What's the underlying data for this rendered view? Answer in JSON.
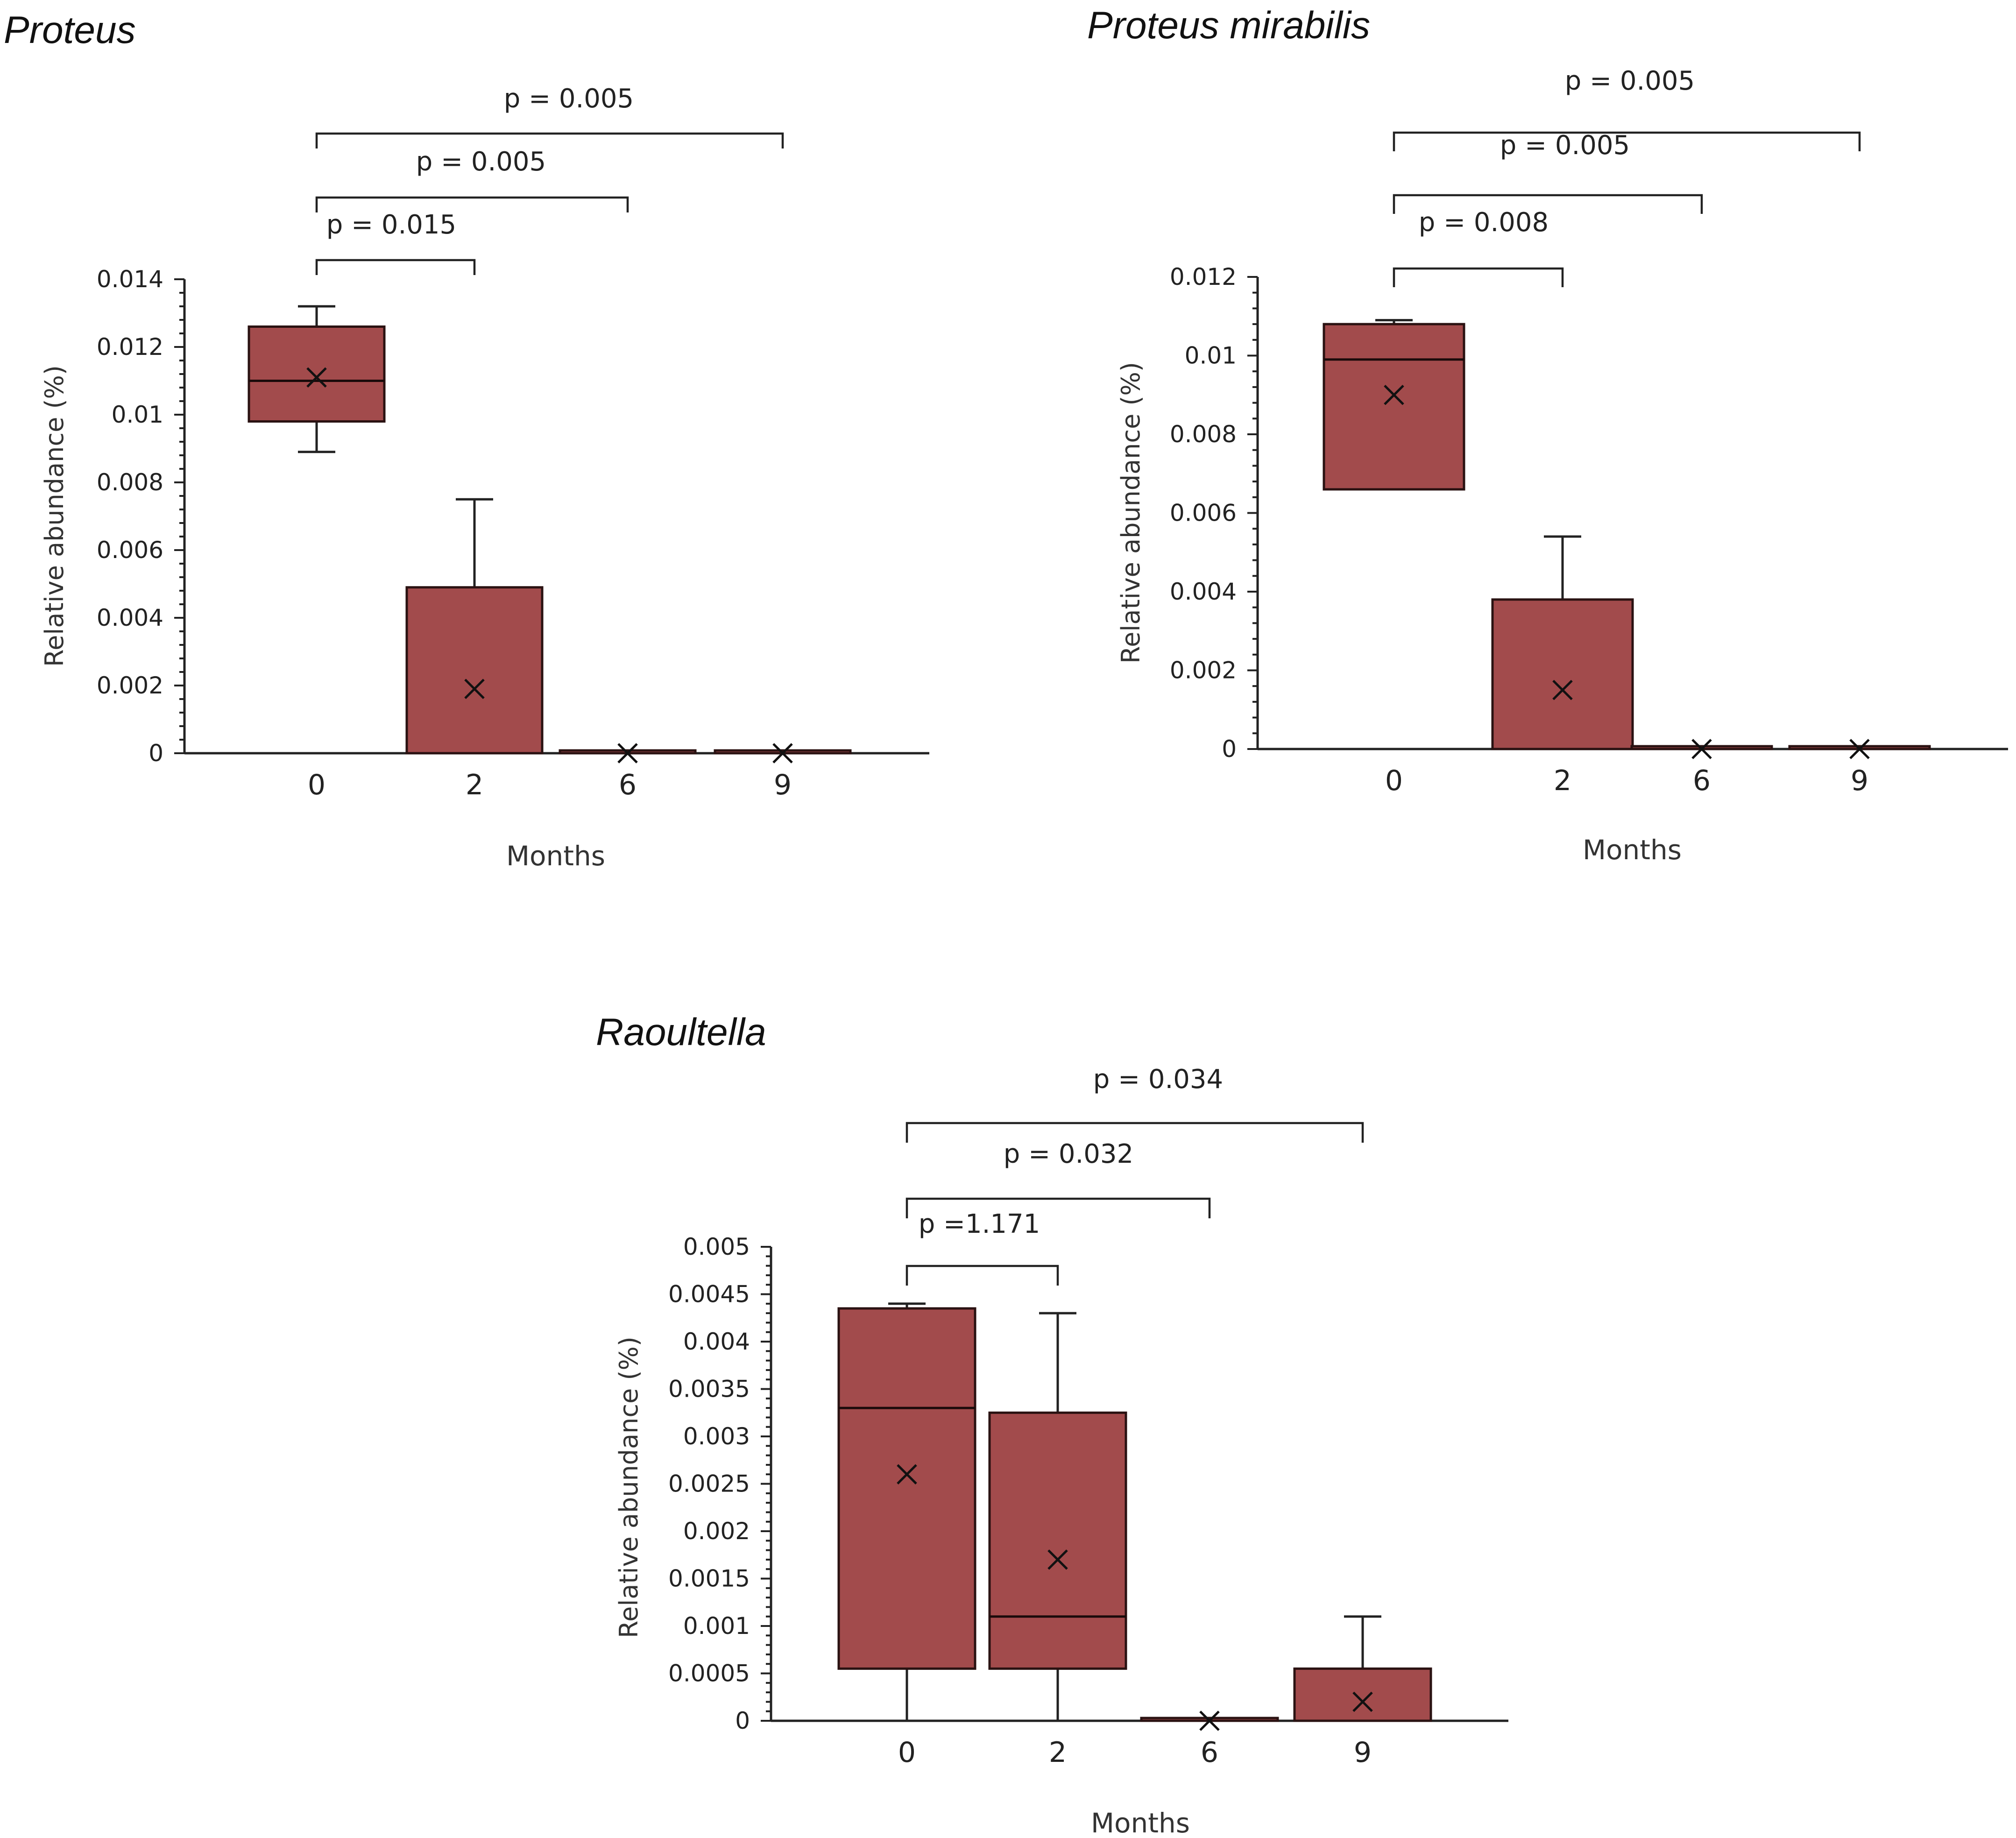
{
  "chart_data": [
    {
      "id": "proteus",
      "type": "box",
      "title": "Proteus",
      "xlabel": "Months",
      "ylabel": "Relative abundance (%)",
      "ylim": [
        0,
        0.014
      ],
      "yticks": [
        0,
        0.002,
        0.004,
        0.006,
        0.008,
        0.01,
        0.012,
        0.014
      ],
      "ytick_labels": [
        "0",
        "0.002",
        "0.004",
        "0.006",
        "0.008",
        "0.01",
        "0.012",
        "0.014"
      ],
      "categories": [
        "0",
        "2",
        "6",
        "9"
      ],
      "boxes": [
        {
          "category": "0",
          "min": 0.0089,
          "q1": 0.0098,
          "median": 0.011,
          "q3": 0.0126,
          "max": 0.0132,
          "mean": 0.0111
        },
        {
          "category": "2",
          "min": 0,
          "q1": 0,
          "median": 0,
          "q3": 0.0049,
          "max": 0.0075,
          "mean": 0.0019
        },
        {
          "category": "6",
          "min": 0,
          "q1": 0,
          "median": 0,
          "q3": 0,
          "max": 0,
          "mean": 0
        },
        {
          "category": "9",
          "min": 0,
          "q1": 0,
          "median": 0,
          "q3": 0,
          "max": 0,
          "mean": 0
        }
      ],
      "comparisons": [
        {
          "from": "0",
          "to": "2",
          "label": "p  = 0.015"
        },
        {
          "from": "0",
          "to": "6",
          "label": "p = 0.005"
        },
        {
          "from": "0",
          "to": "9",
          "label": "p = 0.005"
        }
      ]
    },
    {
      "id": "proteus-mirabilis",
      "type": "box",
      "title": "Proteus mirabilis",
      "xlabel": "Months",
      "ylabel": "Relative abundance (%)",
      "ylim": [
        0,
        0.012
      ],
      "yticks": [
        0,
        0.002,
        0.004,
        0.006,
        0.008,
        0.01,
        0.012
      ],
      "ytick_labels": [
        "0",
        "0.002",
        "0.004",
        "0.006",
        "0.008",
        "0.01",
        "0.012"
      ],
      "categories": [
        "0",
        "2",
        "6",
        "9"
      ],
      "boxes": [
        {
          "category": "0",
          "min": 0.0066,
          "q1": 0.0066,
          "median": 0.0099,
          "q3": 0.0108,
          "max": 0.0109,
          "mean": 0.009
        },
        {
          "category": "2",
          "min": 0,
          "q1": 0,
          "median": 0,
          "q3": 0.0038,
          "max": 0.0054,
          "mean": 0.0015
        },
        {
          "category": "6",
          "min": 0,
          "q1": 0,
          "median": 0,
          "q3": 0,
          "max": 0,
          "mean": 0
        },
        {
          "category": "9",
          "min": 0,
          "q1": 0,
          "median": 0,
          "q3": 0,
          "max": 0,
          "mean": 0
        }
      ],
      "comparisons": [
        {
          "from": "0",
          "to": "2",
          "label": "p = 0.008"
        },
        {
          "from": "0",
          "to": "6",
          "label": "p = 0.005"
        },
        {
          "from": "0",
          "to": "9",
          "label": "p = 0.005"
        }
      ]
    },
    {
      "id": "raoultella",
      "type": "box",
      "title": "Raoultella",
      "xlabel": "Months",
      "ylabel": "Relative abundance (%)",
      "ylim": [
        0,
        0.005
      ],
      "yticks": [
        0,
        0.0005,
        0.001,
        0.0015,
        0.002,
        0.0025,
        0.003,
        0.0035,
        0.004,
        0.0045,
        0.005
      ],
      "ytick_labels": [
        "0",
        "0.0005",
        "0.001",
        "0.0015",
        "0.002",
        "0.0025",
        "0.003",
        "0.0035",
        "0.004",
        "0.0045",
        "0.005"
      ],
      "categories": [
        "0",
        "2",
        "6",
        "9"
      ],
      "boxes": [
        {
          "category": "0",
          "min": 0,
          "q1": 0.00055,
          "median": 0.0033,
          "q3": 0.00435,
          "max": 0.0044,
          "mean": 0.0026
        },
        {
          "category": "2",
          "min": 0,
          "q1": 0.00055,
          "median": 0.0011,
          "q3": 0.00325,
          "max": 0.0043,
          "mean": 0.0017
        },
        {
          "category": "6",
          "min": 0,
          "q1": 0,
          "median": 0,
          "q3": 0,
          "max": 0,
          "mean": 0
        },
        {
          "category": "9",
          "min": 0,
          "q1": 0,
          "median": 0,
          "q3": 0.00055,
          "max": 0.0011,
          "mean": 0.0002
        }
      ],
      "comparisons": [
        {
          "from": "0",
          "to": "2",
          "label": "p =1.171"
        },
        {
          "from": "0",
          "to": "6",
          "label": "p = 0.032"
        },
        {
          "from": "0",
          "to": "9",
          "label": "p = 0.034"
        }
      ]
    }
  ]
}
